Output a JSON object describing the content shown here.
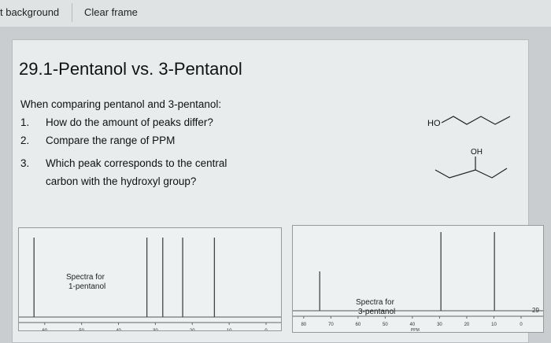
{
  "toolbar": {
    "set_background": "t background",
    "clear_frame": "Clear frame"
  },
  "slide": {
    "title": "29.1-Pentanol vs. 3-Pentanol",
    "intro": "When comparing pentanol and 3-pentanol:",
    "questions": [
      {
        "num": "1.",
        "text": "How do the amount of peaks differ?"
      },
      {
        "num": "2.",
        "text": "Compare the range of PPM"
      },
      {
        "num": "3.",
        "text": "Which peak corresponds to the central carbon with the hydroxyl group?"
      }
    ],
    "molecule1_label": "HO",
    "molecule2_label": "OH"
  },
  "chart_data": [
    {
      "type": "bar",
      "title": "Spectra for 1-pentanol",
      "xlabel": "PPM",
      "xlim": [
        67,
        0
      ],
      "ticks": [
        60,
        50,
        40,
        30,
        20,
        10,
        0
      ],
      "peaks": [
        {
          "ppm": 62.9,
          "height": 1
        },
        {
          "ppm": 32.3,
          "height": 1
        },
        {
          "ppm": 28.0,
          "height": 1
        },
        {
          "ppm": 22.6,
          "height": 1
        },
        {
          "ppm": 14.0,
          "height": 1
        }
      ]
    },
    {
      "type": "bar",
      "title": "Spectra for 3-pentanol",
      "xlabel": "PPM",
      "xlim": [
        84,
        0
      ],
      "ticks": [
        80,
        70,
        60,
        50,
        40,
        30,
        20,
        10,
        0
      ],
      "annotation": "29",
      "peaks": [
        {
          "ppm": 74.1,
          "height": 0.5
        },
        {
          "ppm": 29.5,
          "height": 1
        },
        {
          "ppm": 9.8,
          "height": 1
        }
      ]
    }
  ]
}
